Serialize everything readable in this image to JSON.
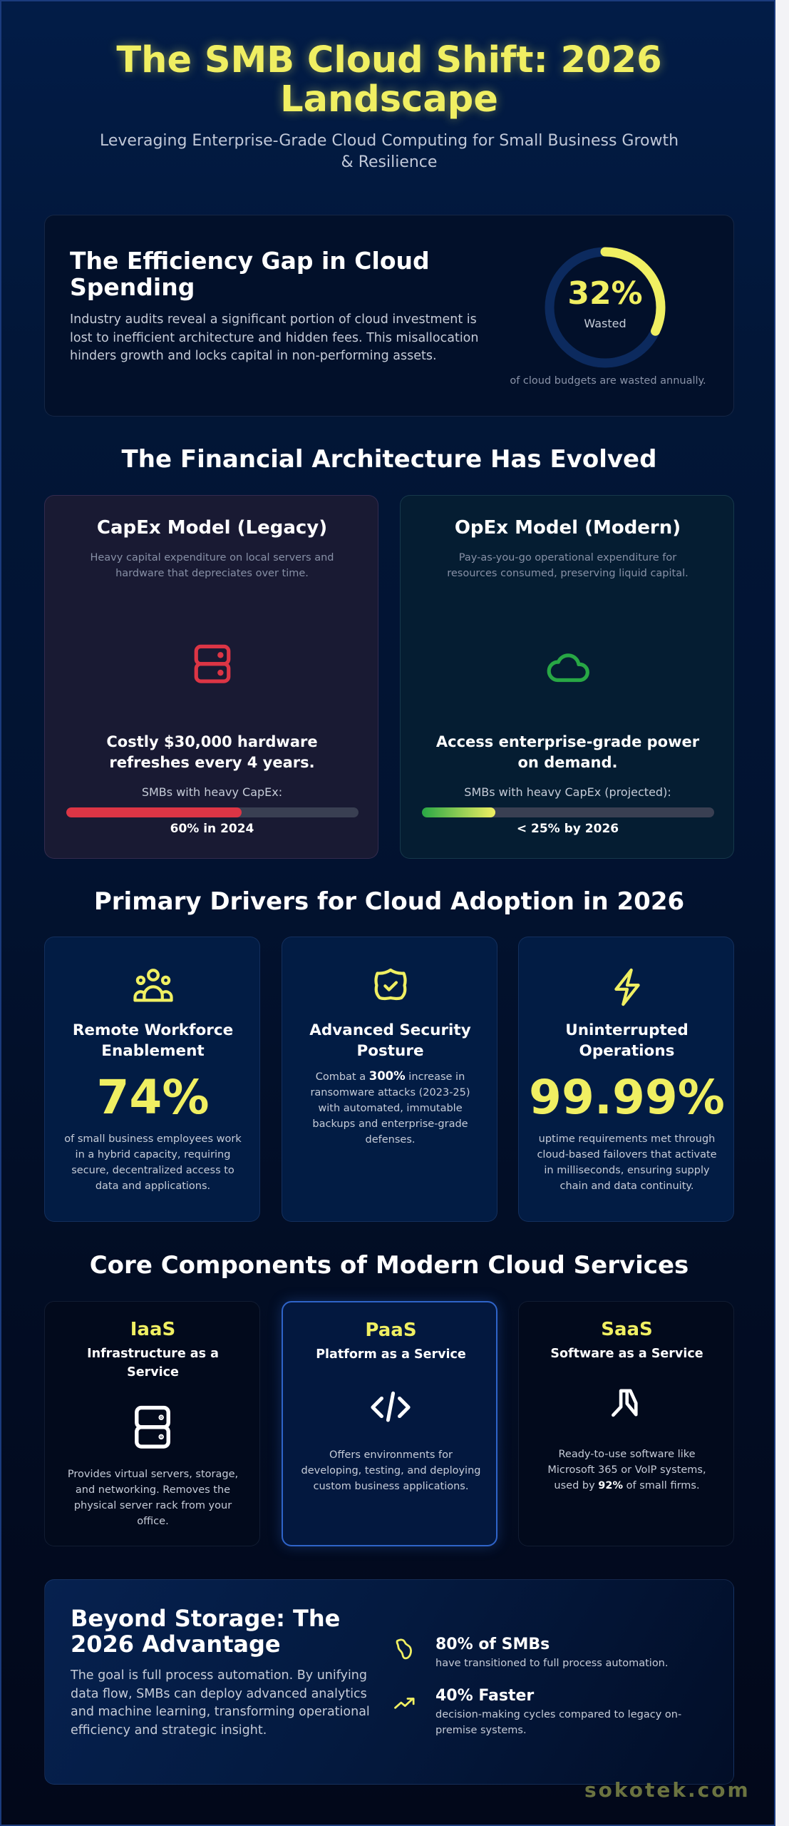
{
  "header": {
    "title_line1": "The SMB Cloud Shift: 2026",
    "title_line2": "Landscape",
    "subtitle_line1": "Leveraging Enterprise-Grade Cloud Computing for Small Business Growth",
    "subtitle_line2": "& Resilience"
  },
  "efficiency": {
    "title": "The Efficiency Gap in Cloud Spending",
    "body": "Industry audits reveal a significant portion of cloud investment is lost to inefficient architecture and hidden fees. This misallocation hinders growth and locks capital in non-performing assets.",
    "donut_value": "32%",
    "donut_label": "Wasted",
    "donut_percent": 32,
    "caption": "of cloud budgets are wasted annually."
  },
  "financial": {
    "section_title": "The Financial Architecture Has Evolved",
    "capex": {
      "title": "CapEx Model (Legacy)",
      "description": "Heavy capital expenditure on local servers and hardware that depreciates over time.",
      "icon": "server-icon",
      "headline": "Costly $30,000 hardware refreshes every 4 years.",
      "bar_label": "SMBs with heavy CapEx:",
      "bar_percent": 60,
      "bar_value": "60% in 2024",
      "color": "#dc3545"
    },
    "opex": {
      "title": "OpEx Model (Modern)",
      "description": "Pay-as-you-go operational expenditure for resources consumed, preserving liquid capital.",
      "icon": "cloud-icon",
      "headline": "Access enterprise-grade power on demand.",
      "bar_label": "SMBs with heavy CapEx (projected):",
      "bar_percent": 25,
      "bar_value": "< 25% by 2026",
      "color": "#28a745"
    }
  },
  "drivers": {
    "section_title": "Primary Drivers for Cloud Adoption in 2026",
    "items": [
      {
        "icon": "users-icon",
        "title": "Remote Workforce Enablement",
        "stat": "74%",
        "text": "of small business employees work in a hybrid capacity, requiring secure, decentralized access to data and applications."
      },
      {
        "icon": "shield-check-icon",
        "title": "Advanced Security Posture",
        "text_before": "Combat a ",
        "text_bold": "300%",
        "text_after": " increase in ransomware attacks (2023-25) with automated, immutable backups and enterprise-grade defenses."
      },
      {
        "icon": "lightning-icon",
        "title": "Uninterrupted Operations",
        "stat": "99.99%",
        "text": "uptime requirements met through cloud-based failovers that activate in milliseconds, ensuring supply chain and data continuity."
      }
    ]
  },
  "core": {
    "section_title": "Core Components of Modern Cloud Services",
    "items": [
      {
        "tag": "IaaS",
        "title": "Infrastructure as a Service",
        "icon": "server-icon",
        "text": "Provides virtual servers, storage, and networking. Removes the physical server rack from your office."
      },
      {
        "tag": "PaaS",
        "title": "Platform as a Service",
        "icon": "code-icon",
        "text": "Offers environments for developing, testing, and deploying custom business applications.",
        "highlighted": true
      },
      {
        "tag": "SaaS",
        "title": "Software as a Service",
        "icon": "app-icon",
        "text_before": "Ready-to-use software like Microsoft 365 or VoIP systems, used by ",
        "text_bold": "92%",
        "text_after": " of small firms."
      }
    ]
  },
  "beyond": {
    "title": "Beyond Storage: The 2026 Advantage",
    "body": "The goal is full process automation. By unifying data flow, SMBs can deploy advanced analytics and machine learning, transforming operational efficiency and strategic insight.",
    "items": [
      {
        "icon": "brain-icon",
        "headline": "80% of SMBs",
        "text": "have transitioned to full process automation."
      },
      {
        "icon": "trending-up-icon",
        "headline": "40% Faster",
        "text": "decision-making cycles compared to legacy on-premise systems."
      }
    ]
  },
  "footer": {
    "brand": "sokotek.com"
  },
  "colors": {
    "accent_yellow": "#f0ef62",
    "capex_red": "#dc3545",
    "opex_green": "#28a745",
    "highlight_blue": "#2f64c9",
    "background_top": "#021c47",
    "background_bottom": "#02081a"
  }
}
